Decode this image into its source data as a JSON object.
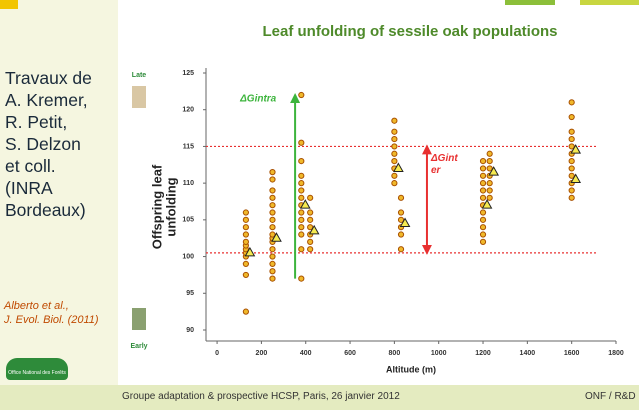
{
  "side_text": {
    "lines": [
      "Travaux de",
      "A. Kremer,",
      "R. Petit,",
      "S. Delzon",
      "et coll.",
      "(INRA",
      "Bordeaux)"
    ],
    "citation": [
      "Alberto et al.,",
      "J. Evol. Biol. (2011)"
    ]
  },
  "logo_text": "Office National des Forêts",
  "footer": {
    "left": "Groupe adaptation & prospective HCSP, Paris, 26 janvier 2012",
    "right": "ONF / R&D"
  },
  "chart_data": {
    "type": "scatter",
    "title": "Leaf unfolding of sessile oak populations",
    "y_label_lines": [
      "Offspring leaf",
      "unfolding"
    ],
    "x_label": "Altitude (m)",
    "y_end_labels": {
      "top": "Late",
      "bottom": "Early"
    },
    "xlim": [
      -50,
      1800
    ],
    "xticks": [
      0,
      200,
      400,
      600,
      800,
      1000,
      1200,
      1400,
      1600,
      1800
    ],
    "ylim": [
      88.5,
      125
    ],
    "yticks": [
      90,
      95,
      100,
      105,
      110,
      115,
      120,
      125
    ],
    "point_color": "#f0b82a",
    "point_edge": "#a85000",
    "mean_color": "#f5ea50",
    "mean_edge": "#222222",
    "series": [
      {
        "x": 130,
        "values": [
          92.5,
          97.5,
          99,
          100,
          100.5,
          101,
          101.5,
          102,
          103,
          104,
          105,
          106
        ]
      },
      {
        "x": 250,
        "values": [
          97,
          98,
          99,
          100,
          101,
          102,
          102.5,
          103,
          104,
          105,
          106,
          107,
          108,
          109,
          110.5,
          111.5
        ]
      },
      {
        "x": 380,
        "values": [
          97,
          101,
          103,
          104,
          105,
          106,
          107,
          108,
          109,
          110,
          111,
          113,
          115.5,
          122
        ]
      },
      {
        "x": 420,
        "values": [
          101,
          102,
          103,
          104,
          105,
          106,
          108
        ]
      },
      {
        "x": 800,
        "values": [
          110,
          111,
          112,
          113,
          114,
          115,
          116,
          117,
          118.5
        ]
      },
      {
        "x": 830,
        "values": [
          101,
          103,
          104,
          105,
          106,
          108
        ]
      },
      {
        "x": 1200,
        "values": [
          102,
          103,
          104,
          105,
          106,
          107,
          108,
          109,
          110,
          111,
          112,
          113
        ]
      },
      {
        "x": 1230,
        "values": [
          108,
          109,
          110,
          111,
          112,
          113,
          114
        ]
      },
      {
        "x": 1600,
        "values": [
          108,
          109,
          110,
          111,
          112,
          113,
          114,
          115,
          116,
          117,
          119,
          121
        ]
      }
    ],
    "means": {
      "x": [
        130,
        250,
        380,
        420,
        800,
        830,
        1200,
        1230,
        1600,
        1600
      ],
      "values": [
        100.5,
        102.5,
        107,
        103.5,
        112,
        104.5,
        107,
        111.5,
        110.5,
        114.5
      ]
    },
    "reference_lines": [
      {
        "value": 115,
        "color": "#e83030"
      },
      {
        "value": 100.5,
        "color": "#e83030"
      }
    ],
    "arrows": [
      {
        "x": 352,
        "from": 97,
        "to": 122,
        "color": "#3cb43c",
        "label_lines": [
          "ΔGintra"
        ]
      },
      {
        "x": 947,
        "from": 100.5,
        "to": 115,
        "color": "#e83030",
        "label_lines": [
          "ΔGint",
          "er"
        ]
      }
    ]
  }
}
